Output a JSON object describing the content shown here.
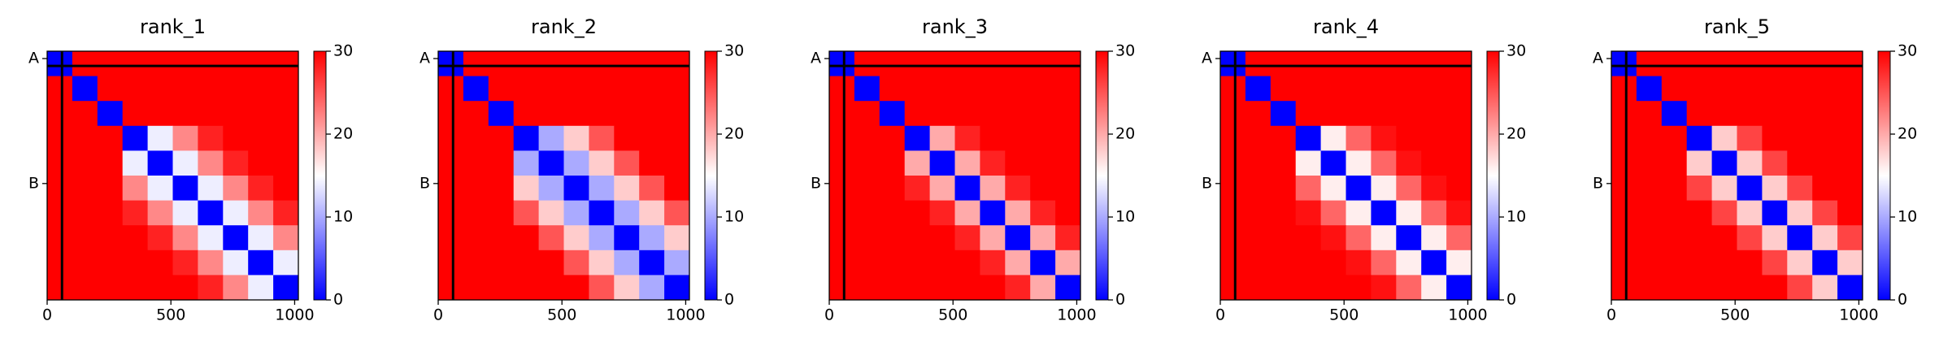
{
  "chart_data": [
    {
      "type": "heatmap",
      "title": "rank_1",
      "xlim": [
        0,
        1015
      ],
      "ylim": [
        1015,
        0
      ],
      "xticks": [
        0,
        500,
        1000
      ],
      "yticks": [
        {
          "value": 30,
          "label": "A"
        },
        {
          "value": 540,
          "label": "B"
        }
      ],
      "clim": [
        0,
        30
      ],
      "cticks": [
        0,
        10,
        20,
        30
      ],
      "cmap": [
        "#0000ff",
        "#ffffff",
        "#ff0000"
      ],
      "boundaries": [
        60
      ],
      "boundary_color": "#000000",
      "matrix": [
        [
          0,
          30,
          30,
          30,
          30,
          30,
          30,
          30,
          30,
          30
        ],
        [
          30,
          0,
          30,
          30,
          30,
          30,
          30,
          30,
          30,
          30
        ],
        [
          30,
          30,
          0,
          30,
          30,
          30,
          30,
          30,
          30,
          30
        ],
        [
          30,
          30,
          30,
          0,
          14,
          22,
          28,
          30,
          30,
          30
        ],
        [
          30,
          30,
          30,
          14,
          0,
          14,
          22,
          28,
          30,
          30
        ],
        [
          30,
          30,
          30,
          22,
          14,
          0,
          14,
          22,
          28,
          30
        ],
        [
          30,
          30,
          30,
          28,
          22,
          14,
          0,
          14,
          22,
          28
        ],
        [
          30,
          30,
          30,
          30,
          28,
          22,
          14,
          0,
          14,
          22
        ],
        [
          30,
          30,
          30,
          30,
          30,
          28,
          22,
          14,
          0,
          14
        ],
        [
          30,
          30,
          30,
          30,
          30,
          30,
          28,
          22,
          14,
          0
        ]
      ]
    },
    {
      "type": "heatmap",
      "title": "rank_2",
      "xlim": [
        0,
        1015
      ],
      "ylim": [
        1015,
        0
      ],
      "xticks": [
        0,
        500,
        1000
      ],
      "yticks": [
        {
          "value": 30,
          "label": "A"
        },
        {
          "value": 540,
          "label": "B"
        }
      ],
      "clim": [
        0,
        30
      ],
      "cticks": [
        0,
        10,
        20,
        30
      ],
      "cmap": [
        "#0000ff",
        "#ffffff",
        "#ff0000"
      ],
      "boundaries": [
        60
      ],
      "boundary_color": "#000000",
      "matrix": [
        [
          0,
          30,
          30,
          30,
          30,
          30,
          30,
          30,
          30,
          30
        ],
        [
          30,
          0,
          30,
          30,
          30,
          30,
          30,
          30,
          30,
          30
        ],
        [
          30,
          30,
          0,
          30,
          30,
          30,
          30,
          30,
          30,
          30
        ],
        [
          30,
          30,
          30,
          0,
          10,
          18,
          25,
          30,
          30,
          30
        ],
        [
          30,
          30,
          30,
          10,
          0,
          10,
          18,
          25,
          30,
          30
        ],
        [
          30,
          30,
          30,
          18,
          10,
          0,
          10,
          18,
          25,
          30
        ],
        [
          30,
          30,
          30,
          25,
          18,
          10,
          0,
          10,
          18,
          25
        ],
        [
          30,
          30,
          30,
          30,
          25,
          18,
          10,
          0,
          10,
          18
        ],
        [
          30,
          30,
          30,
          30,
          30,
          25,
          18,
          10,
          0,
          10
        ],
        [
          30,
          30,
          30,
          30,
          30,
          30,
          25,
          18,
          10,
          0
        ]
      ]
    },
    {
      "type": "heatmap",
      "title": "rank_3",
      "xlim": [
        0,
        1015
      ],
      "ylim": [
        1015,
        0
      ],
      "xticks": [
        0,
        500,
        1000
      ],
      "yticks": [
        {
          "value": 30,
          "label": "A"
        },
        {
          "value": 540,
          "label": "B"
        }
      ],
      "clim": [
        0,
        30
      ],
      "cticks": [
        0,
        10,
        20,
        30
      ],
      "cmap": [
        "#0000ff",
        "#ffffff",
        "#ff0000"
      ],
      "boundaries": [
        60
      ],
      "boundary_color": "#000000",
      "matrix": [
        [
          0,
          30,
          30,
          30,
          30,
          30,
          30,
          30,
          30,
          30
        ],
        [
          30,
          0,
          30,
          30,
          30,
          30,
          30,
          30,
          30,
          30
        ],
        [
          30,
          30,
          0,
          30,
          30,
          30,
          30,
          30,
          30,
          30
        ],
        [
          30,
          30,
          30,
          0,
          20,
          28,
          30,
          30,
          30,
          30
        ],
        [
          30,
          30,
          30,
          20,
          0,
          20,
          28,
          30,
          30,
          30
        ],
        [
          30,
          30,
          30,
          28,
          20,
          0,
          20,
          28,
          30,
          30
        ],
        [
          30,
          30,
          30,
          30,
          28,
          20,
          0,
          20,
          28,
          30
        ],
        [
          30,
          30,
          30,
          30,
          30,
          28,
          20,
          0,
          20,
          28
        ],
        [
          30,
          30,
          30,
          30,
          30,
          30,
          28,
          20,
          0,
          20
        ],
        [
          30,
          30,
          30,
          30,
          30,
          30,
          30,
          28,
          20,
          0
        ]
      ]
    },
    {
      "type": "heatmap",
      "title": "rank_4",
      "xlim": [
        0,
        1015
      ],
      "ylim": [
        1015,
        0
      ],
      "xticks": [
        0,
        500,
        1000
      ],
      "yticks": [
        {
          "value": 30,
          "label": "A"
        },
        {
          "value": 540,
          "label": "B"
        }
      ],
      "clim": [
        0,
        30
      ],
      "cticks": [
        0,
        10,
        20,
        30
      ],
      "cmap": [
        "#0000ff",
        "#ffffff",
        "#ff0000"
      ],
      "boundaries": [
        60
      ],
      "boundary_color": "#000000",
      "matrix": [
        [
          0,
          30,
          30,
          30,
          30,
          30,
          30,
          30,
          30,
          30
        ],
        [
          30,
          0,
          30,
          30,
          30,
          30,
          30,
          30,
          30,
          30
        ],
        [
          30,
          30,
          0,
          30,
          30,
          30,
          30,
          30,
          30,
          30
        ],
        [
          30,
          30,
          30,
          0,
          16,
          24,
          29,
          30,
          30,
          30
        ],
        [
          30,
          30,
          30,
          16,
          0,
          16,
          24,
          29,
          30,
          30
        ],
        [
          30,
          30,
          30,
          24,
          16,
          0,
          16,
          24,
          29,
          30
        ],
        [
          30,
          30,
          30,
          29,
          24,
          16,
          0,
          16,
          24,
          29
        ],
        [
          30,
          30,
          30,
          30,
          29,
          24,
          16,
          0,
          16,
          24
        ],
        [
          30,
          30,
          30,
          30,
          30,
          29,
          24,
          16,
          0,
          16
        ],
        [
          30,
          30,
          30,
          30,
          30,
          30,
          29,
          24,
          16,
          0
        ]
      ]
    },
    {
      "type": "heatmap",
      "title": "rank_5",
      "xlim": [
        0,
        1015
      ],
      "ylim": [
        1015,
        0
      ],
      "xticks": [
        0,
        500,
        1000
      ],
      "yticks": [
        {
          "value": 30,
          "label": "A"
        },
        {
          "value": 540,
          "label": "B"
        }
      ],
      "clim": [
        0,
        30
      ],
      "cticks": [
        0,
        10,
        20,
        30
      ],
      "cmap": [
        "#0000ff",
        "#ffffff",
        "#ff0000"
      ],
      "boundaries": [
        60
      ],
      "boundary_color": "#000000",
      "matrix": [
        [
          0,
          30,
          30,
          30,
          30,
          30,
          30,
          30,
          30,
          30
        ],
        [
          30,
          0,
          30,
          30,
          30,
          30,
          30,
          30,
          30,
          30
        ],
        [
          30,
          30,
          0,
          30,
          30,
          30,
          30,
          30,
          30,
          30
        ],
        [
          30,
          30,
          30,
          0,
          18,
          26,
          30,
          30,
          30,
          30
        ],
        [
          30,
          30,
          30,
          18,
          0,
          18,
          26,
          30,
          30,
          30
        ],
        [
          30,
          30,
          30,
          26,
          18,
          0,
          18,
          26,
          30,
          30
        ],
        [
          30,
          30,
          30,
          30,
          26,
          18,
          0,
          18,
          26,
          30
        ],
        [
          30,
          30,
          30,
          30,
          30,
          26,
          18,
          0,
          18,
          26
        ],
        [
          30,
          30,
          30,
          30,
          30,
          30,
          26,
          18,
          0,
          18
        ],
        [
          30,
          30,
          30,
          30,
          30,
          30,
          30,
          26,
          18,
          0
        ]
      ]
    }
  ]
}
